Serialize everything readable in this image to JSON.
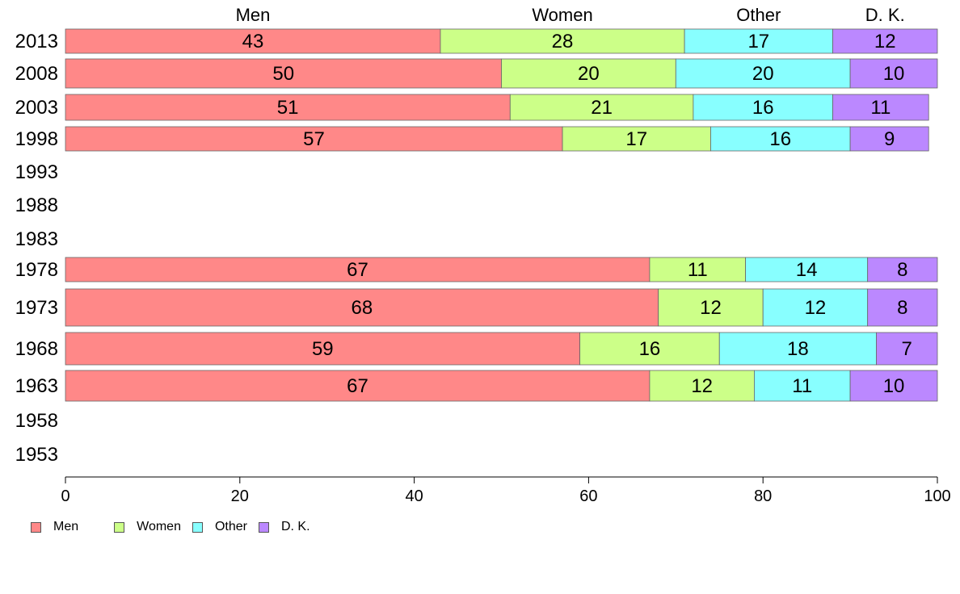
{
  "chart_data": {
    "type": "bar",
    "orientation": "horizontal",
    "stacked": true,
    "categories": [
      "2013",
      "2008",
      "2003",
      "1998",
      "1993",
      "1988",
      "1983",
      "1978",
      "1973",
      "1968",
      "1963",
      "1958",
      "1953"
    ],
    "series": [
      {
        "name": "Men",
        "color": "#ff8888",
        "values": [
          43,
          50,
          51,
          57,
          null,
          null,
          null,
          67,
          68,
          59,
          67,
          null,
          null
        ]
      },
      {
        "name": "Women",
        "color": "#ccff88",
        "values": [
          28,
          20,
          21,
          17,
          null,
          null,
          null,
          11,
          12,
          16,
          12,
          null,
          null
        ]
      },
      {
        "name": "Other",
        "color": "#88ffff",
        "values": [
          17,
          20,
          16,
          16,
          null,
          null,
          null,
          14,
          12,
          18,
          11,
          null,
          null
        ]
      },
      {
        "name": "D. K.",
        "color": "#bb88ff",
        "values": [
          12,
          10,
          11,
          9,
          null,
          null,
          null,
          8,
          8,
          7,
          10,
          null,
          null
        ]
      }
    ],
    "top_labels": [
      "Men",
      "Women",
      "Other",
      "D. K."
    ],
    "x_ticks": [
      "0",
      "20",
      "40",
      "60",
      "80",
      "100"
    ],
    "xlim": [
      0,
      100
    ],
    "grid": false,
    "legend_position": "bottom-left"
  }
}
